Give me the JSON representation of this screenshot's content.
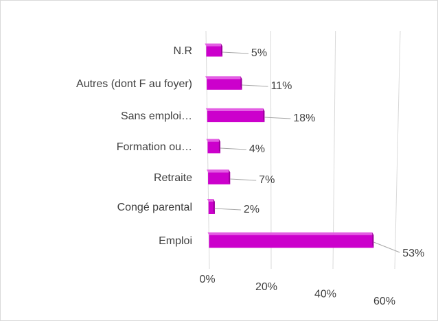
{
  "chart_data": {
    "type": "bar3d",
    "orientation": "horizontal",
    "categories": [
      "N.R",
      "Autres (dont F au foyer)",
      "Sans emploi…",
      "Formation ou…",
      "Retraite",
      "Congé parental",
      "Emploi"
    ],
    "values": [
      5,
      11,
      18,
      4,
      7,
      2,
      53
    ],
    "value_labels": [
      "5%",
      "11%",
      "18%",
      "4%",
      "7%",
      "2%",
      "53%"
    ],
    "color": "#cc00cc",
    "xlim": [
      0,
      60
    ],
    "xticks": [
      {
        "value": 0,
        "label": "0%"
      },
      {
        "value": 20,
        "label": "20%"
      },
      {
        "value": 40,
        "label": "40%"
      },
      {
        "value": 60,
        "label": "60%"
      }
    ],
    "grid": true
  }
}
